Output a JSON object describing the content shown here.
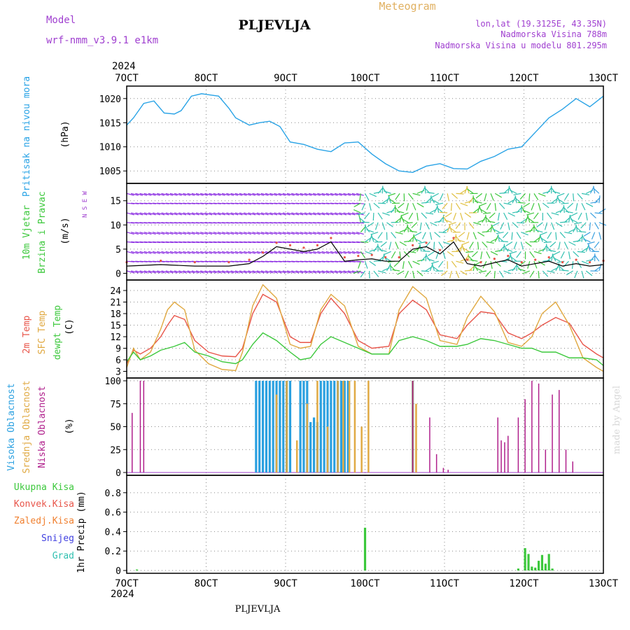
{
  "header": {
    "model_label": "Model",
    "model_name": "wrf-nmm_v3.9.1 e1km",
    "station": "PLJEVLJA",
    "title": "Meteogram",
    "lonlat": "lon,lat (19.3125E, 43.35N)",
    "elevation": "Nadmorska Visina 788m",
    "model_elevation": "Nadmorska Visina u modelu 801.295m",
    "footer_station": "PLJEVLJA",
    "credit": "made by Angel"
  },
  "colors": {
    "pressure": "#29a3e6",
    "temp2m": "#e8554a",
    "sfc": "#e0a840",
    "dewpt": "#3cc83c",
    "high_cloud": "#2aa0e0",
    "mid_cloud": "#e0aa44",
    "low_cloud": "#b0208c",
    "precip": "#3cc83c",
    "purple_text": "#a040d0",
    "grid": "#888888"
  },
  "time_axis": {
    "year": "2024",
    "ticks": [
      "7OCT",
      "8OCT",
      "9OCT",
      "10OCT",
      "11OCT",
      "12OCT",
      "13OCT"
    ]
  },
  "chart_data": [
    {
      "type": "line",
      "ylabel_main": "Pritisak na nivou mora",
      "ylabel_unit": "(hPa)",
      "yticks": [
        1005,
        1010,
        1015,
        1020
      ],
      "ylim": [
        1003,
        1022
      ],
      "x_unit": "days since 7OCT 00h",
      "series": [
        {
          "name": "pressure",
          "x": [
            0,
            0.1,
            0.25,
            0.4,
            0.55,
            0.7,
            0.8,
            0.95,
            1.1,
            1.2,
            1.35,
            1.5,
            1.6,
            1.8,
            1.95,
            2.1,
            2.25,
            2.4,
            2.6,
            2.8,
            3,
            3.2,
            3.4,
            3.6,
            3.8,
            4,
            4.2,
            4.4,
            4.6,
            4.8,
            5,
            5.2,
            5.4,
            5.6,
            5.8,
            6,
            6.2,
            6.4,
            6.6,
            6.8,
            7
          ],
          "y": [
            1014.5,
            1016,
            1019,
            1019.5,
            1017,
            1016.8,
            1017.5,
            1020.5,
            1021,
            1020.8,
            1020.5,
            1018,
            1016,
            1014.5,
            1015,
            1015.3,
            1014.2,
            1011,
            1010.5,
            1009.5,
            1009,
            1010.8,
            1011,
            1008.5,
            1006.5,
            1005,
            1004.7,
            1006,
            1006.5,
            1005.5,
            1005.4,
            1007,
            1008,
            1009.5,
            1010,
            1013,
            1016,
            1017.8,
            1020,
            1018.3,
            1020.5
          ]
        }
      ]
    },
    {
      "type": "scatter",
      "ylabel_main": "10m Vjetar",
      "ylabel_sub": "Brzina i Pravac",
      "ylabel_unit": "(m/s)",
      "compass": "N S E W",
      "yticks": [
        0,
        5,
        10,
        15
      ],
      "ylim": [
        -0.8,
        18
      ],
      "series": [
        {
          "name": "speed",
          "x": [
            0,
            0.5,
            1,
            1.5,
            1.8,
            2,
            2.2,
            2.4,
            2.6,
            2.8,
            3,
            3.2,
            3.4,
            3.6,
            3.8,
            4,
            4.2,
            4.4,
            4.6,
            4.8,
            5,
            5.2,
            5.4,
            5.6,
            5.8,
            6,
            6.2,
            6.4,
            6.6,
            6.8,
            7
          ],
          "y": [
            1.5,
            1.8,
            1.5,
            1.5,
            2,
            3.5,
            5.5,
            5,
            4.5,
            5,
            6.5,
            2.5,
            2.8,
            3,
            2.5,
            2.5,
            5,
            5.5,
            4,
            6.5,
            2,
            1.5,
            2.2,
            2.8,
            1.5,
            2,
            2.5,
            1.5,
            2,
            1.5,
            1.8
          ]
        }
      ]
    },
    {
      "type": "line",
      "ylabel_main": "2m Temp",
      "ylabel_sub": "SFC Temp",
      "ylabel_sub2": "dewpt Temp",
      "ylabel_unit": "(C)",
      "yticks": [
        3,
        6,
        9,
        12,
        15,
        18,
        21,
        24
      ],
      "ylim": [
        2,
        26
      ],
      "series": [
        {
          "name": "2m",
          "x": [
            0,
            0.1,
            0.2,
            0.35,
            0.5,
            0.6,
            0.7,
            0.85,
            1,
            1.2,
            1.4,
            1.6,
            1.7,
            1.85,
            2,
            2.2,
            2.4,
            2.55,
            2.7,
            2.85,
            3,
            3.2,
            3.4,
            3.6,
            3.85,
            4,
            4.2,
            4.4,
            4.6,
            4.85,
            5,
            5.2,
            5.4,
            5.6,
            5.8,
            5.95,
            6.1,
            6.3,
            6.5,
            6.7,
            6.9,
            7
          ],
          "y": [
            5,
            8.5,
            7.5,
            9,
            12,
            15,
            17.5,
            16.5,
            11,
            8,
            7,
            6.8,
            9,
            18,
            23,
            21,
            12,
            10.5,
            10.5,
            18,
            22,
            18,
            11,
            9,
            9.5,
            18,
            21.5,
            19,
            12.5,
            11.5,
            15,
            18.5,
            18,
            13,
            11.5,
            13,
            15,
            17,
            15.5,
            10,
            7.5,
            6.5
          ]
        },
        {
          "name": "sfc",
          "x": [
            0,
            0.1,
            0.2,
            0.35,
            0.5,
            0.6,
            0.7,
            0.85,
            1,
            1.2,
            1.4,
            1.6,
            1.7,
            1.85,
            2,
            2.2,
            2.4,
            2.55,
            2.7,
            2.85,
            3,
            3.2,
            3.4,
            3.6,
            3.85,
            4,
            4.2,
            4.4,
            4.6,
            4.85,
            5,
            5.2,
            5.4,
            5.6,
            5.8,
            5.95,
            6.1,
            6.3,
            6.5,
            6.7,
            6.9,
            7
          ],
          "y": [
            4,
            9,
            6,
            8,
            14,
            19,
            21,
            19,
            8.5,
            5,
            3.5,
            3.2,
            8,
            20,
            25.5,
            22,
            10,
            9,
            9.5,
            19,
            23,
            20,
            9.5,
            7.5,
            7.5,
            19,
            25,
            22,
            11,
            10,
            17,
            22.5,
            18.5,
            10.5,
            9.5,
            12,
            18,
            21,
            15,
            6.5,
            4,
            3
          ]
        },
        {
          "name": "dewpt",
          "x": [
            0,
            0.1,
            0.2,
            0.35,
            0.5,
            0.6,
            0.7,
            0.85,
            1,
            1.2,
            1.4,
            1.6,
            1.7,
            1.85,
            2,
            2.2,
            2.4,
            2.55,
            2.7,
            2.85,
            3,
            3.2,
            3.4,
            3.6,
            3.85,
            4,
            4.2,
            4.4,
            4.6,
            4.85,
            5,
            5.2,
            5.4,
            5.6,
            5.8,
            5.95,
            6.1,
            6.3,
            6.5,
            6.7,
            6.9,
            7
          ],
          "y": [
            5.5,
            8,
            6,
            7,
            8.5,
            9,
            9.5,
            10.5,
            8,
            7,
            5.5,
            5,
            6,
            10,
            13,
            11,
            8,
            6,
            6.5,
            10,
            12,
            10.5,
            9,
            7.5,
            7.5,
            11,
            12,
            11,
            9.5,
            9.5,
            10,
            11.5,
            11,
            10,
            9,
            9,
            8,
            8,
            6.5,
            6.5,
            6,
            4.5
          ]
        }
      ]
    },
    {
      "type": "bar",
      "ylabel_main": "Visoka Oblacnost",
      "ylabel_sub": "Srednja Oblacnost",
      "ylabel_sub2": "Niska Oblacnost",
      "ylabel_unit": "(%)",
      "yticks": [
        0,
        25,
        50,
        75,
        100
      ],
      "ylim": [
        0,
        100
      ],
      "series": [
        {
          "name": "low",
          "x": [
            0.08,
            0.2,
            0.25,
            4.2,
            4.45,
            4.55,
            4.65,
            4.72,
            5.45,
            5.5,
            5.55,
            5.6,
            5.75,
            5.85,
            5.95,
            6.05,
            6.15,
            6.25,
            6.35,
            6.45,
            6.55
          ],
          "y": [
            65,
            100,
            100,
            100,
            60,
            20,
            5,
            3,
            60,
            35,
            33,
            40,
            60,
            80,
            100,
            97,
            25,
            85,
            90,
            25,
            12
          ]
        },
        {
          "name": "mid",
          "x": [
            2.2,
            2.35,
            2.5,
            2.65,
            2.8,
            2.95,
            3.1,
            3.18,
            3.27,
            3.35,
            3.45,
            3.55,
            4.2,
            4.25
          ],
          "y": [
            85,
            100,
            35,
            75,
            100,
            50,
            100,
            100,
            100,
            100,
            50,
            100,
            100,
            75
          ]
        },
        {
          "name": "high",
          "x": [
            1.9,
            1.95,
            2.0,
            2.05,
            2.1,
            2.15,
            2.2,
            2.25,
            2.3,
            2.35,
            2.4,
            2.55,
            2.6,
            2.65,
            2.7,
            2.75,
            2.8,
            2.85,
            2.9,
            2.95,
            3.0,
            3.05,
            3.1,
            3.15,
            3.2,
            3.25,
            4.2
          ],
          "y": [
            100,
            100,
            100,
            100,
            100,
            100,
            100,
            100,
            100,
            100,
            100,
            100,
            100,
            100,
            55,
            60,
            55,
            100,
            100,
            100,
            100,
            100,
            100,
            100,
            100,
            100,
            100
          ]
        }
      ]
    },
    {
      "type": "bar",
      "legend": [
        "Ukupna Kisa",
        "Konvek.Kisa",
        "Zaledj.Kisa",
        "Snijeg",
        "Grad"
      ],
      "ylabel_unit": "1hr Precip (mm)",
      "yticks": [
        0,
        0.2,
        0.4,
        0.6,
        0.8
      ],
      "ylim": [
        0,
        0.95
      ],
      "series": [
        {
          "name": "total",
          "x": [
            0.15,
            3.5,
            5.75,
            5.85,
            5.9,
            5.95,
            6.0,
            6.05,
            6.1,
            6.15,
            6.2,
            6.25
          ],
          "y": [
            0.01,
            0.44,
            0.02,
            0.23,
            0.17,
            0.04,
            0.03,
            0.1,
            0.16,
            0.07,
            0.17,
            0.02
          ]
        }
      ]
    }
  ]
}
